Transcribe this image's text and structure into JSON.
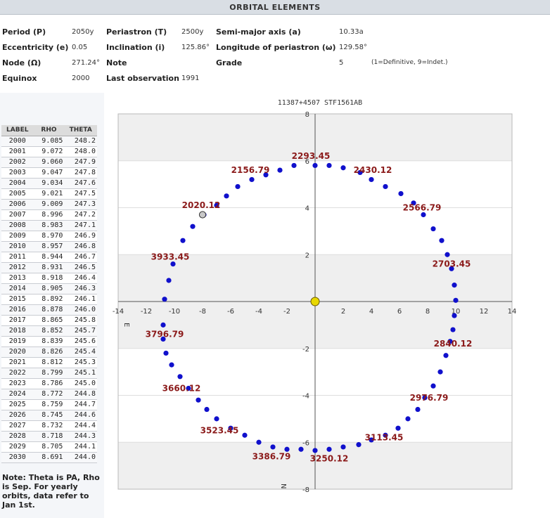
{
  "header": {
    "title": "ORBITAL ELEMENTS"
  },
  "elements": {
    "period_label": "Period (P)",
    "period_value": "2050y",
    "periastron_label": "Periastron (T)",
    "periastron_value": "2500y",
    "semimajor_label": "Semi-major axis (a)",
    "semimajor_value": "10.33a",
    "ecc_label": "Eccentricity (e)",
    "ecc_value": "0.05",
    "incl_label": "Inclination (i)",
    "incl_value": "125.86°",
    "longperi_label": "Longitude of periastron (ω)",
    "longperi_value": "129.58°",
    "node_label": "Node (Ω)",
    "node_value": "271.24°",
    "note_label": "Note",
    "grade_label": "Grade",
    "grade_value": "5",
    "grade_legend": "(1=Definitive, 9=Indet.)",
    "equinox_label": "Equinox",
    "equinox_value": "2000",
    "lastobs_label": "Last observation",
    "lastobs_value": "1991"
  },
  "table": {
    "headers": [
      "LABEL",
      "RHO",
      "THETA"
    ],
    "rows": [
      [
        "2000",
        "9.085",
        "248.2"
      ],
      [
        "2001",
        "9.072",
        "248.0"
      ],
      [
        "2002",
        "9.060",
        "247.9"
      ],
      [
        "2003",
        "9.047",
        "247.8"
      ],
      [
        "2004",
        "9.034",
        "247.6"
      ],
      [
        "2005",
        "9.021",
        "247.5"
      ],
      [
        "2006",
        "9.009",
        "247.3"
      ],
      [
        "2007",
        "8.996",
        "247.2"
      ],
      [
        "2008",
        "8.983",
        "247.1"
      ],
      [
        "2009",
        "8.970",
        "246.9"
      ],
      [
        "2010",
        "8.957",
        "246.8"
      ],
      [
        "2011",
        "8.944",
        "246.7"
      ],
      [
        "2012",
        "8.931",
        "246.5"
      ],
      [
        "2013",
        "8.918",
        "246.4"
      ],
      [
        "2014",
        "8.905",
        "246.3"
      ],
      [
        "2015",
        "8.892",
        "246.1"
      ],
      [
        "2016",
        "8.878",
        "246.0"
      ],
      [
        "2017",
        "8.865",
        "245.8"
      ],
      [
        "2018",
        "8.852",
        "245.7"
      ],
      [
        "2019",
        "8.839",
        "245.6"
      ],
      [
        "2020",
        "8.826",
        "245.4"
      ],
      [
        "2021",
        "8.812",
        "245.3"
      ],
      [
        "2022",
        "8.799",
        "245.1"
      ],
      [
        "2023",
        "8.786",
        "245.0"
      ],
      [
        "2024",
        "8.772",
        "244.8"
      ],
      [
        "2025",
        "8.759",
        "244.7"
      ],
      [
        "2026",
        "8.745",
        "244.6"
      ],
      [
        "2027",
        "8.732",
        "244.4"
      ],
      [
        "2028",
        "8.718",
        "244.3"
      ],
      [
        "2029",
        "8.705",
        "244.1"
      ],
      [
        "2030",
        "8.691",
        "244.0"
      ]
    ]
  },
  "note_text": "Note: Theta is PA, Rho is Sep. For yearly orbits, data refer to Jan 1st.",
  "chart_data": {
    "type": "scatter",
    "title": "11387+4507 STF1561AB",
    "xlim": [
      -14,
      14
    ],
    "ylim": [
      -8,
      8
    ],
    "x_ticks": [
      -14,
      -12,
      -10,
      -8,
      -6,
      -4,
      -2,
      2,
      4,
      6,
      8,
      10,
      12,
      14
    ],
    "y_ticks": [
      -8,
      -6,
      -4,
      -2,
      2,
      4,
      6,
      8
    ],
    "orientation_labels": {
      "east": "E",
      "north": "N"
    },
    "band_color": "#efefef",
    "point_color": "#1010cc",
    "label_color": "#8b1a1a",
    "origin_color": "#e8d800",
    "orbit_points": {
      "x": [
        0.0,
        1.0,
        2.0,
        3.2,
        4.0,
        5.0,
        6.1,
        7.0,
        7.7,
        8.4,
        9.0,
        9.4,
        9.7,
        9.9,
        10.0,
        9.9,
        9.8,
        9.6,
        9.3,
        8.9,
        8.4,
        7.8,
        7.3,
        6.6,
        5.9,
        5.0,
        4.0,
        3.1,
        2.0,
        1.0,
        0.0,
        -1.0,
        -2.0,
        -3.0,
        -4.0,
        -5.0,
        -6.0,
        -7.0,
        -7.7,
        -8.3,
        -9.0,
        -9.6,
        -10.2,
        -10.6,
        -10.8,
        -10.8,
        -10.7,
        -10.4,
        -10.1,
        -9.4,
        -8.7,
        -7.9,
        -7.0,
        -6.3,
        -5.5,
        -4.5,
        -3.5,
        -2.5,
        -1.5
      ],
      "y": [
        5.8,
        5.8,
        5.7,
        5.5,
        5.2,
        4.9,
        4.6,
        4.2,
        3.7,
        3.1,
        2.6,
        2.0,
        1.4,
        0.7,
        0.05,
        -0.6,
        -1.2,
        -1.7,
        -2.3,
        -3.0,
        -3.6,
        -4.1,
        -4.6,
        -5.0,
        -5.4,
        -5.7,
        -5.9,
        -6.1,
        -6.2,
        -6.3,
        -6.35,
        -6.3,
        -6.3,
        -6.2,
        -6.0,
        -5.7,
        -5.4,
        -5.0,
        -4.6,
        -4.2,
        -3.7,
        -3.2,
        -2.7,
        -2.2,
        -1.6,
        -1.0,
        0.1,
        0.9,
        1.6,
        2.6,
        3.2,
        3.7,
        4.1,
        4.5,
        4.9,
        5.2,
        5.4,
        5.6,
        5.8
      ]
    },
    "observations": {
      "x": [
        -8.0
      ],
      "y": [
        3.7
      ]
    },
    "annotations": [
      {
        "text": "2293.45",
        "x": -0.3,
        "y": 6.2
      },
      {
        "text": "2430.12",
        "x": 4.1,
        "y": 5.6
      },
      {
        "text": "2566.79",
        "x": 7.6,
        "y": 4.0
      },
      {
        "text": "2703.45",
        "x": 9.7,
        "y": 1.6
      },
      {
        "text": "2840.12",
        "x": 9.8,
        "y": -1.8
      },
      {
        "text": "2976.79",
        "x": 8.1,
        "y": -4.1
      },
      {
        "text": "3113.45",
        "x": 4.9,
        "y": -5.8
      },
      {
        "text": "3250.12",
        "x": 1.0,
        "y": -6.7
      },
      {
        "text": "3386.79",
        "x": -3.1,
        "y": -6.6
      },
      {
        "text": "3523.45",
        "x": -6.8,
        "y": -5.5
      },
      {
        "text": "3660.12",
        "x": -9.5,
        "y": -3.7
      },
      {
        "text": "3796.79",
        "x": -10.7,
        "y": -1.4
      },
      {
        "text": "3933.45",
        "x": -10.3,
        "y": 1.9
      },
      {
        "text": "2020.12",
        "x": -8.1,
        "y": 4.1
      },
      {
        "text": "2156.79",
        "x": -4.6,
        "y": 5.6
      }
    ]
  }
}
